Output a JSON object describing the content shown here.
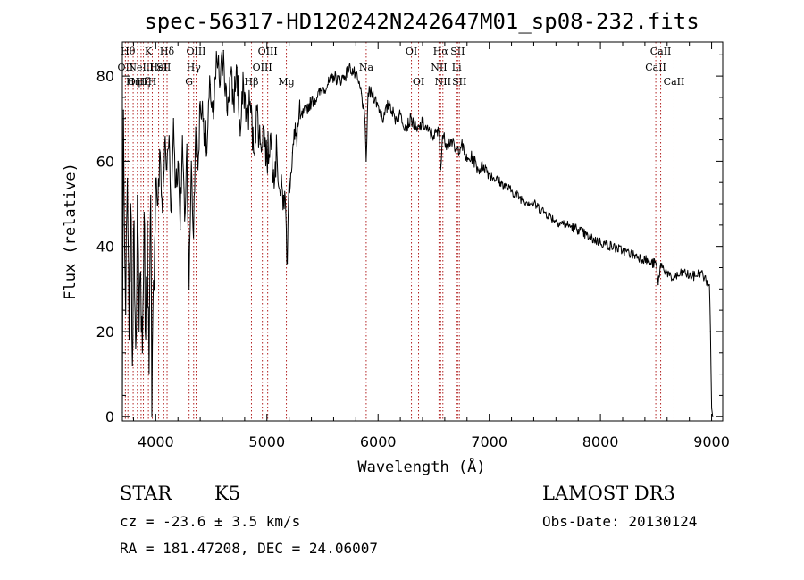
{
  "chart_data": {
    "type": "line",
    "title": "spec-56317-HD120242N242647M01_sp08-232.fits",
    "xlabel": "Wavelength (Å)",
    "ylabel": "Flux (relative)",
    "xlim": [
      3700,
      9100
    ],
    "ylim": [
      -1,
      88
    ],
    "x_ticks": [
      4000,
      5000,
      6000,
      7000,
      8000,
      9000
    ],
    "y_ticks": [
      0,
      20,
      40,
      60,
      80
    ],
    "x_tick_labels": [
      "4000",
      "5000",
      "6000",
      "7000",
      "8000",
      "9000"
    ],
    "y_tick_labels": [
      "0",
      "20",
      "40",
      "60",
      "80"
    ],
    "series": [
      {
        "name": "spectrum",
        "x": [
          3700,
          3710,
          3720,
          3730,
          3745,
          3760,
          3775,
          3790,
          3805,
          3820,
          3835,
          3850,
          3865,
          3880,
          3895,
          3910,
          3925,
          3940,
          3955,
          3965,
          3980,
          4000,
          4020,
          4040,
          4060,
          4080,
          4100,
          4120,
          4140,
          4160,
          4180,
          4200,
          4220,
          4240,
          4260,
          4280,
          4300,
          4320,
          4340,
          4360,
          4380,
          4400,
          4430,
          4460,
          4490,
          4520,
          4550,
          4580,
          4610,
          4640,
          4670,
          4700,
          4730,
          4760,
          4790,
          4820,
          4850,
          4880,
          4910,
          4940,
          4970,
          5000,
          5030,
          5060,
          5090,
          5120,
          5150,
          5170,
          5183,
          5200,
          5230,
          5260,
          5300,
          5350,
          5400,
          5450,
          5500,
          5550,
          5600,
          5650,
          5700,
          5750,
          5800,
          5850,
          5880,
          5893,
          5910,
          5950,
          6000,
          6050,
          6100,
          6150,
          6200,
          6250,
          6300,
          6350,
          6400,
          6450,
          6500,
          6550,
          6563,
          6580,
          6620,
          6660,
          6700,
          6750,
          6800,
          6850,
          6900,
          6950,
          7000,
          7100,
          7200,
          7300,
          7400,
          7500,
          7600,
          7700,
          7800,
          7900,
          8000,
          8100,
          8200,
          8300,
          8400,
          8450,
          8500,
          8520,
          8542,
          8560,
          8600,
          8640,
          8662,
          8700,
          8750,
          8800,
          8850,
          8900,
          8950,
          8980,
          8990,
          9000,
          9010
        ],
        "values": [
          1,
          72,
          40,
          24,
          56,
          18,
          50,
          12,
          46,
          16,
          52,
          20,
          34,
          15,
          48,
          18,
          46,
          10,
          52,
          0,
          32,
          56,
          50,
          62,
          48,
          64,
          58,
          66,
          48,
          70,
          54,
          60,
          44,
          66,
          46,
          64,
          30,
          60,
          42,
          68,
          58,
          74,
          70,
          62,
          78,
          70,
          84,
          78,
          86,
          72,
          80,
          74,
          82,
          66,
          78,
          70,
          74,
          62,
          72,
          64,
          68,
          60,
          66,
          58,
          62,
          52,
          52,
          48,
          36,
          56,
          62,
          66,
          70,
          72,
          74,
          75,
          77,
          78,
          80,
          79,
          80,
          82,
          80,
          76,
          70,
          60,
          76,
          76,
          73,
          70,
          74,
          70,
          71,
          68,
          70,
          67,
          69,
          67,
          66,
          67,
          58,
          66,
          64,
          65,
          62,
          64,
          60,
          61,
          58,
          59,
          57,
          55,
          53,
          51,
          50,
          48,
          46,
          45,
          44,
          42,
          41,
          40,
          39,
          38,
          37,
          36,
          36,
          31,
          36,
          35,
          34,
          32,
          33,
          33,
          34,
          33,
          33,
          34,
          32,
          31,
          20,
          2,
          0
        ]
      }
    ],
    "line_markers": [
      {
        "x": 3727,
        "label": "OII",
        "row": 2
      },
      {
        "x": 3750,
        "label": "Hθ",
        "row": 1
      },
      {
        "x": 3797,
        "label": "Hη",
        "row": 3
      },
      {
        "x": 3835,
        "label": "OIII",
        "row": 3
      },
      {
        "x": 3868,
        "label": "NeIII",
        "row": 2
      },
      {
        "x": 3889,
        "label": "Hζ",
        "row": 3
      },
      {
        "x": 3934,
        "label": "K",
        "row": 1
      },
      {
        "x": 3969,
        "label": "H",
        "row": 3
      },
      {
        "x": 4026,
        "label": "HeI",
        "row": 2
      },
      {
        "x": 4072,
        "label": "SII",
        "row": 2
      },
      {
        "x": 4102,
        "label": "Hδ",
        "row": 1
      },
      {
        "x": 4300,
        "label": "G",
        "row": 3
      },
      {
        "x": 4341,
        "label": "Hγ",
        "row": 2
      },
      {
        "x": 4363,
        "label": "OIII",
        "row": 1
      },
      {
        "x": 4861,
        "label": "Hβ",
        "row": 3
      },
      {
        "x": 4959,
        "label": "OIII",
        "row": 2
      },
      {
        "x": 5007,
        "label": "OIII",
        "row": 1
      },
      {
        "x": 5175,
        "label": "Mg",
        "row": 3
      },
      {
        "x": 5893,
        "label": "Na",
        "row": 2
      },
      {
        "x": 6300,
        "label": "OI",
        "row": 1
      },
      {
        "x": 6364,
        "label": "OI",
        "row": 3
      },
      {
        "x": 6548,
        "label": "NII",
        "row": 2
      },
      {
        "x": 6563,
        "label": "Hα",
        "row": 1
      },
      {
        "x": 6583,
        "label": "NII",
        "row": 3
      },
      {
        "x": 6707,
        "label": "Li",
        "row": 2
      },
      {
        "x": 6716,
        "label": "SII",
        "row": 1
      },
      {
        "x": 6731,
        "label": "SII",
        "row": 3
      },
      {
        "x": 8498,
        "label": "CaII",
        "row": 2
      },
      {
        "x": 8542,
        "label": "CaII",
        "row": 1
      },
      {
        "x": 8662,
        "label": "CaII",
        "row": 3
      }
    ]
  },
  "info": {
    "object_class": "STAR",
    "subclass": "K5",
    "redshift": "cz = -23.6 ± 3.5 km/s",
    "coords": "RA = 181.47208, DEC =  24.06007",
    "survey": "LAMOST DR3",
    "obs_date": "Obs-Date: 20130124"
  },
  "colors": {
    "spectrum": "#000000",
    "marker_line": "#b22222"
  }
}
